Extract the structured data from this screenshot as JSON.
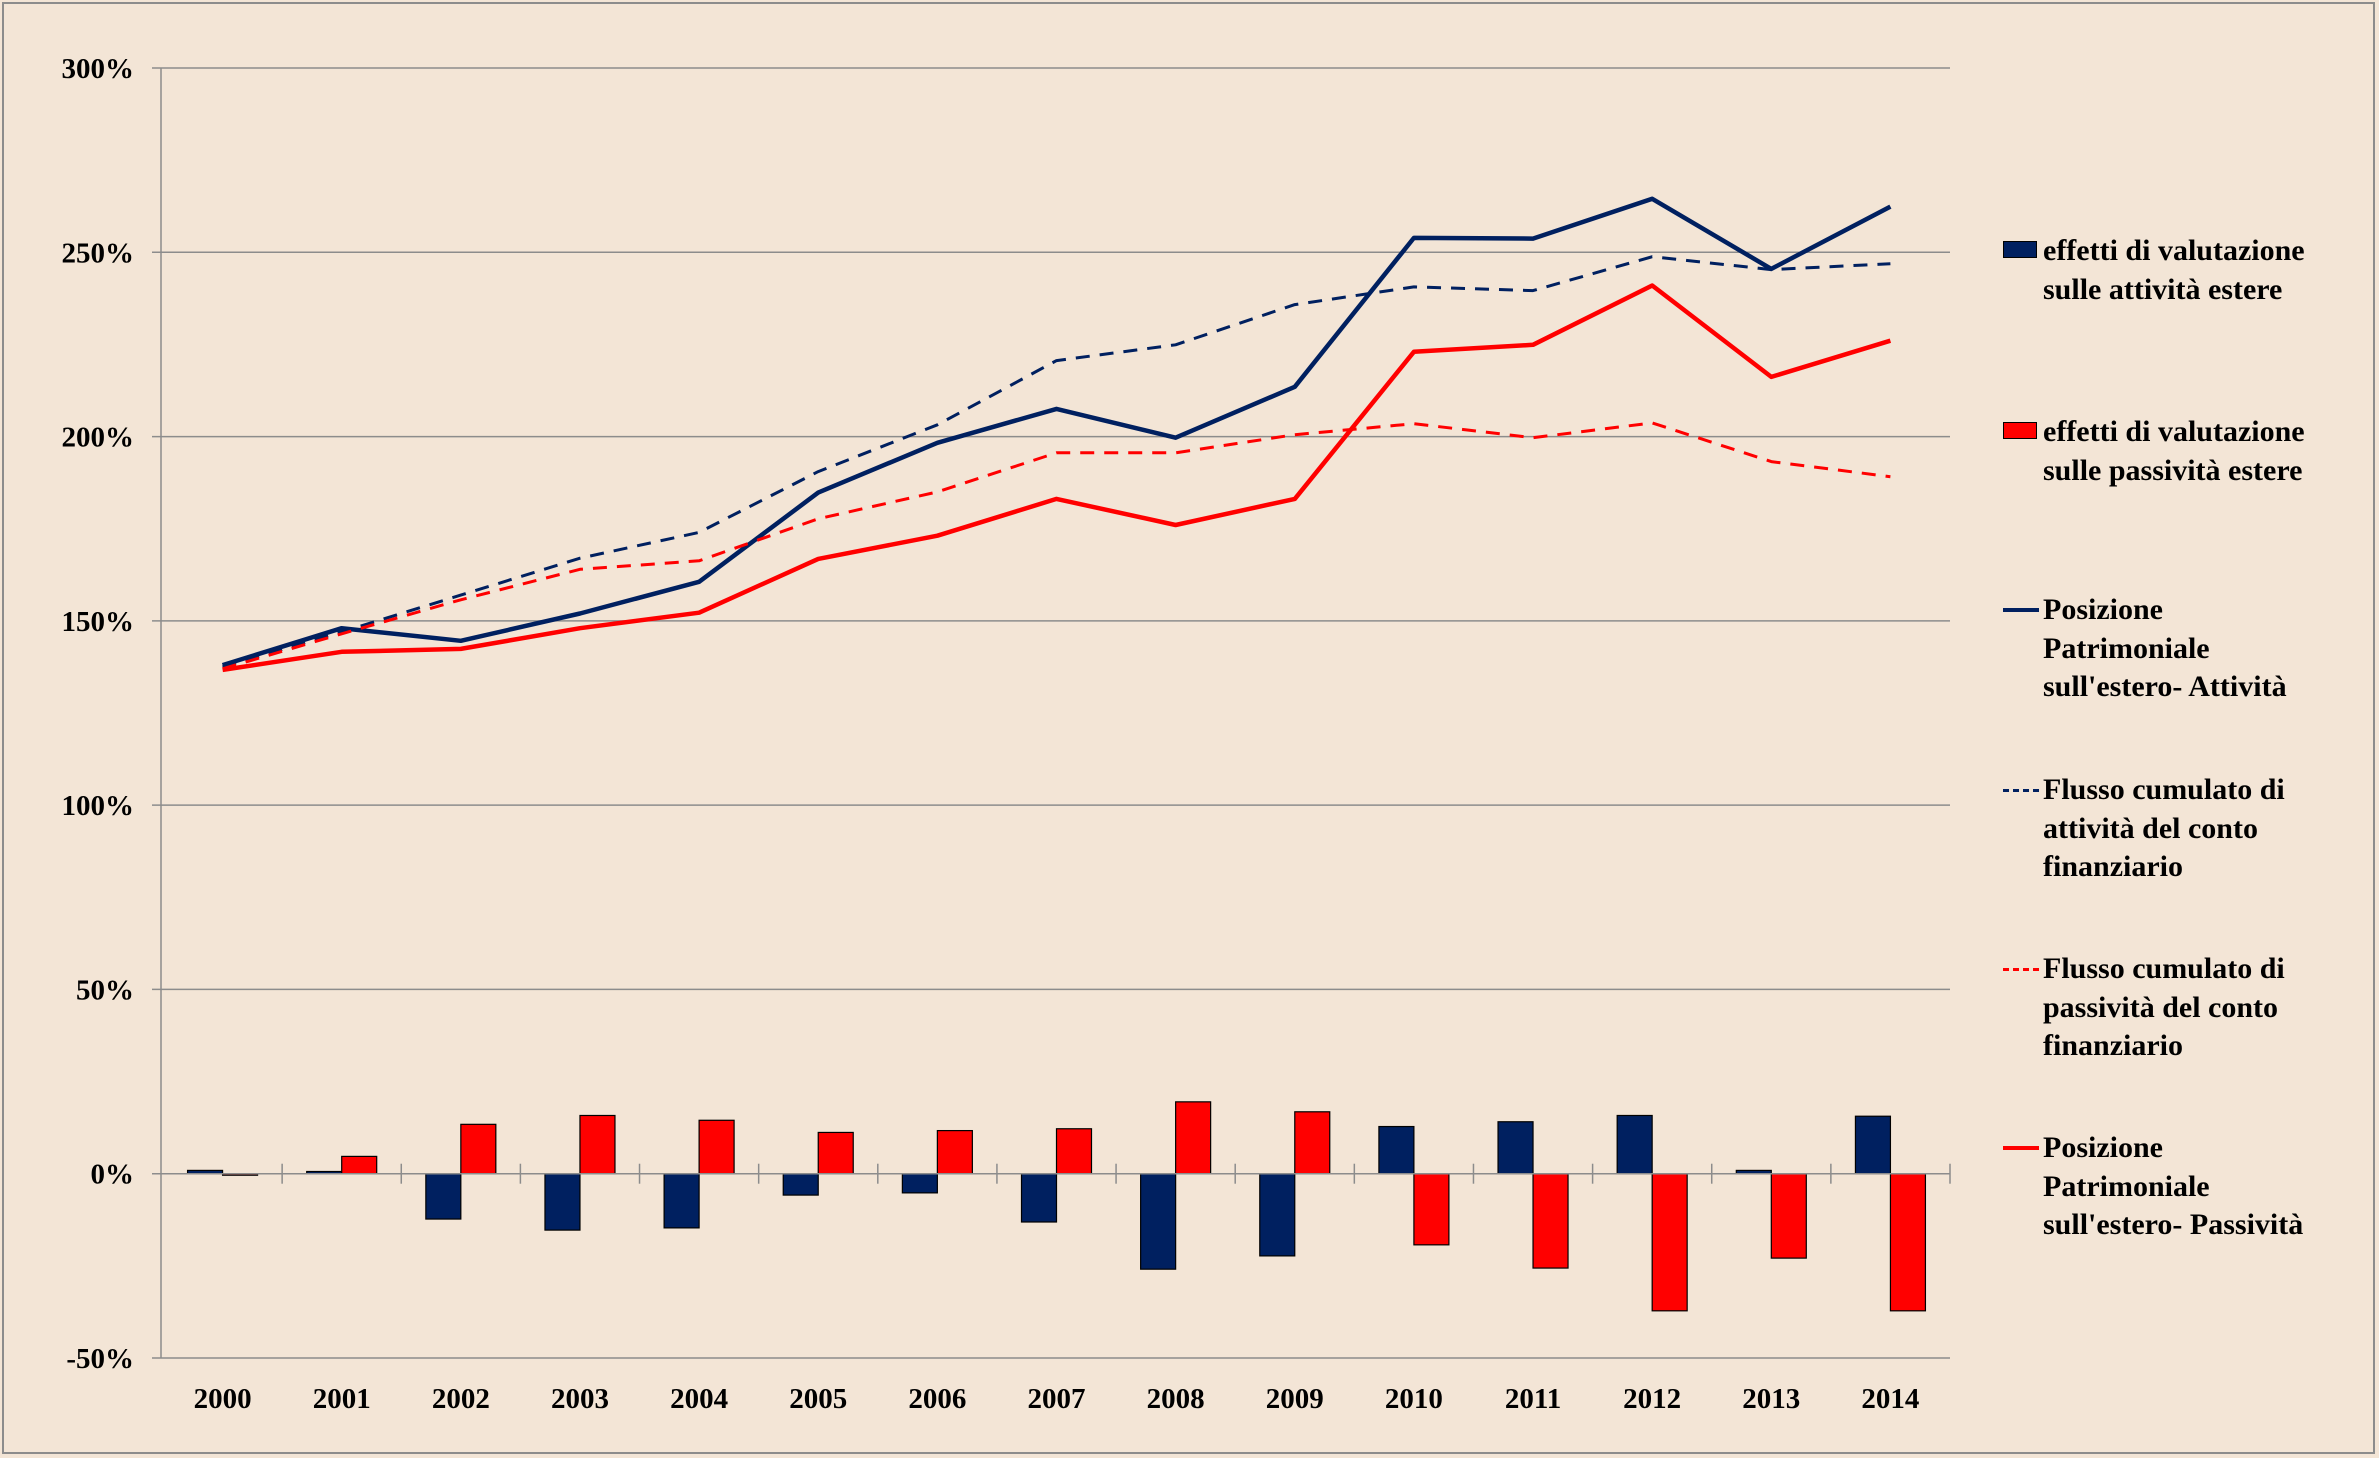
{
  "chart_data": {
    "type": "bar+line",
    "title": "",
    "xlabel": "",
    "ylabel": "",
    "categories": [
      "2000",
      "2001",
      "2002",
      "2003",
      "2004",
      "2005",
      "2006",
      "2007",
      "2008",
      "2009",
      "2010",
      "2011",
      "2012",
      "2013",
      "2014"
    ],
    "ylim": [
      -50,
      300
    ],
    "yticks": [
      -50,
      0,
      50,
      100,
      150,
      200,
      250,
      300
    ],
    "ytick_labels": [
      "-50%",
      "0%",
      "50%",
      "100%",
      "150%",
      "200%",
      "250%",
      "300%"
    ],
    "grid": true,
    "legend_position": "right",
    "series": [
      {
        "name": "effetti di valutazione sulle attività estere",
        "kind": "bar",
        "color": "#002060",
        "values": [
          0.9,
          0.6,
          -12.3,
          -15.3,
          -14.7,
          -5.8,
          -5.2,
          -13.1,
          -25.9,
          -22.3,
          12.8,
          14.1,
          15.8,
          0.9,
          15.6
        ]
      },
      {
        "name": "effetti di valutazione sulle passività estere",
        "kind": "bar",
        "color": "#FF0000",
        "values": [
          -0.4,
          4.7,
          13.4,
          15.8,
          14.5,
          11.2,
          11.7,
          12.2,
          19.5,
          16.8,
          -19.3,
          -25.6,
          -37.2,
          -22.9,
          -37.2
        ]
      },
      {
        "name": "Posizione Patrimoniale sull'estero- Attività",
        "kind": "line",
        "style": "solid",
        "color": "#002060",
        "values": [
          138.0,
          148.0,
          144.6,
          152.0,
          160.6,
          184.8,
          198.3,
          207.5,
          199.7,
          213.5,
          253.9,
          253.7,
          264.5,
          245.5,
          262.4
        ]
      },
      {
        "name": "Flusso cumulato di attività del conto finanziario",
        "kind": "line",
        "style": "dashed",
        "color": "#002060",
        "values": [
          137.5,
          147.0,
          157.0,
          167.0,
          174.0,
          190.5,
          203.2,
          220.6,
          224.9,
          235.8,
          240.6,
          239.6,
          248.8,
          245.3,
          246.9
        ]
      },
      {
        "name": "Flusso cumulato di passività del conto finanziario",
        "kind": "line",
        "style": "dashed",
        "color": "#FF0000",
        "values": [
          137.0,
          146.5,
          155.7,
          164.0,
          166.3,
          177.7,
          185.0,
          195.6,
          195.6,
          200.5,
          203.5,
          199.7,
          203.7,
          193.2,
          189.1
        ]
      },
      {
        "name": "Posizione Patrimoniale sull'estero- Passività",
        "kind": "line",
        "style": "solid",
        "color": "#FF0000",
        "values": [
          136.7,
          141.6,
          142.4,
          148.0,
          152.2,
          166.8,
          173.1,
          183.1,
          176.0,
          183.1,
          223.0,
          224.9,
          241.0,
          216.2,
          226.0
        ]
      }
    ]
  },
  "legend": {
    "items": [
      {
        "symbol": "box",
        "color": "#002060",
        "lines": [
          "effetti di valutazione",
          "sulle attività estere"
        ]
      },
      {
        "symbol": "box",
        "color": "#FF0000",
        "lines": [
          "effetti di valutazione",
          "sulle passività estere"
        ]
      },
      {
        "symbol": "line",
        "color": "#002060",
        "lines": [
          "Posizione",
          "Patrimoniale",
          "sull'estero- Attività"
        ]
      },
      {
        "symbol": "dash",
        "color": "#002060",
        "lines": [
          "Flusso cumulato di",
          "attività del conto",
          "finanziario"
        ]
      },
      {
        "symbol": "dash",
        "color": "#FF0000",
        "lines": [
          "Flusso cumulato di",
          "passività del conto",
          "finanziario"
        ]
      },
      {
        "symbol": "line",
        "color": "#FF0000",
        "lines": [
          "Posizione",
          "Patrimoniale",
          "sull'estero- Passività"
        ]
      }
    ]
  },
  "colors": {
    "background": "#F3E5D6",
    "grid": "#8C8C8C",
    "navy": "#002060",
    "red": "#FF0000"
  }
}
